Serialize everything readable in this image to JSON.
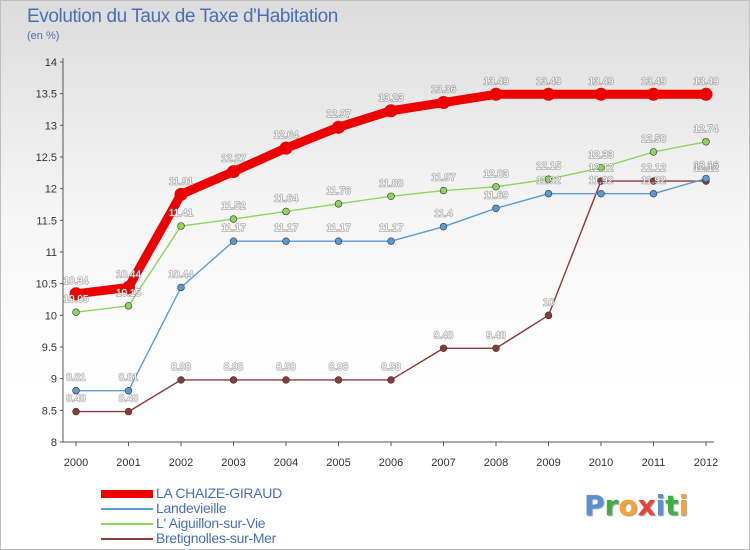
{
  "header": {
    "title": "Evolution du Taux de Taxe d'Habitation",
    "unit": "(en %)"
  },
  "brand": {
    "letters": [
      "P",
      "r",
      "o",
      "x",
      "i",
      "t",
      "i"
    ],
    "colors": [
      "#5b8fd6",
      "#3fae49",
      "#f2a531",
      "#e94336",
      "#5b8fd6",
      "#3fae49",
      "#f2a531"
    ]
  },
  "chart_data": {
    "type": "line",
    "x": [
      "2000",
      "2001",
      "2002",
      "2003",
      "2004",
      "2005",
      "2006",
      "2007",
      "2008",
      "2009",
      "2010",
      "2011",
      "2012"
    ],
    "ylim": [
      8,
      14
    ],
    "yticks": [
      "8",
      "8.5",
      "9",
      "9.5",
      "10",
      "10.5",
      "11",
      "11.5",
      "12",
      "12.5",
      "13",
      "13.5",
      "14"
    ],
    "grid": false,
    "legend": "bottom-left",
    "series": [
      {
        "name": "LA CHAIZE-GIRAUD",
        "color": "#ee0000",
        "values": [
          10.34,
          10.44,
          11.91,
          12.27,
          12.64,
          12.97,
          13.23,
          13.36,
          13.49,
          13.49,
          13.49,
          13.49,
          13.49
        ],
        "labels": [
          "10.34",
          "10.44",
          "11.91",
          "12.27",
          "12.64",
          "12.97",
          "13.23",
          "13.36",
          "13.49",
          "13.49",
          "13.49",
          "13.49",
          "13.49"
        ]
      },
      {
        "name": "Landevieille",
        "color": "#5b9bd5",
        "values": [
          8.81,
          8.81,
          10.44,
          11.17,
          11.17,
          11.17,
          11.17,
          11.4,
          11.69,
          11.92,
          11.92,
          11.92,
          12.16
        ],
        "labels": [
          "8.81",
          "8.81",
          "10.44",
          "11.17",
          "11.17",
          "11.17",
          "11.17",
          "11.4",
          "11.69",
          "11.92",
          "11.92",
          "11.92",
          "12.16"
        ]
      },
      {
        "name": "L' Aiguillon-sur-Vie",
        "color": "#8fd45b",
        "values": [
          10.05,
          10.15,
          11.41,
          11.52,
          11.64,
          11.76,
          11.88,
          11.97,
          12.03,
          12.15,
          12.33,
          12.58,
          12.74
        ],
        "labels": [
          "10.05",
          "10.15",
          "11.41",
          "11.52",
          "11.64",
          "11.76",
          "11.88",
          "11.97",
          "12.03",
          "12.15",
          "12.33",
          "12.58",
          "12.74"
        ]
      },
      {
        "name": "Bretignolles-sur-Mer",
        "color": "#8b3a3a",
        "values": [
          8.48,
          8.48,
          8.98,
          8.98,
          8.98,
          8.98,
          8.98,
          9.48,
          9.48,
          10,
          12.12,
          12.12,
          12.12
        ],
        "labels": [
          "8.48",
          "8.48",
          "8.98",
          "8.98",
          "8.98",
          "8.98",
          "8.98",
          "9.48",
          "9.48",
          "10",
          "12.12",
          "12.12",
          "12.12"
        ]
      }
    ]
  }
}
